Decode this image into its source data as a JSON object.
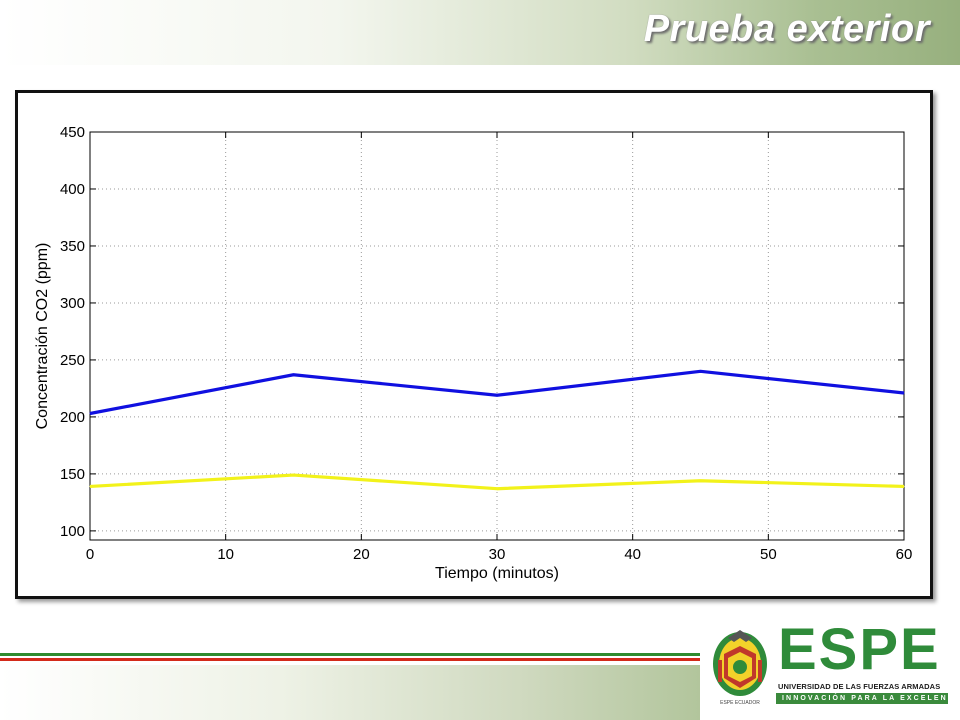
{
  "slide": {
    "title": "Prueba exterior"
  },
  "logo": {
    "name": "ESPE",
    "subtitle": "UNIVERSIDAD DE LAS FUERZAS ARMADAS",
    "tagline": "INNOVACIÓN PARA LA EXCELENCIA",
    "crest_caption": "ESPE ECUADOR",
    "primary_color": "#2f8b3a"
  },
  "chart_data": {
    "type": "line",
    "title": "",
    "xlabel": "Tiempo (minutos)",
    "ylabel": "Concentración CO2 (ppm)",
    "xlim": [
      0,
      60
    ],
    "ylim": [
      92,
      450
    ],
    "xticks": [
      0,
      10,
      20,
      30,
      40,
      50,
      60
    ],
    "yticks": [
      100,
      150,
      200,
      250,
      300,
      350,
      400,
      450
    ],
    "grid": true,
    "grid_style": "dotted",
    "x": [
      0,
      15,
      30,
      45,
      60
    ],
    "series": [
      {
        "name": "",
        "color": "#1010e0",
        "values": [
          203,
          237,
          219,
          240,
          221
        ]
      },
      {
        "name": "",
        "color": "#f2f21a",
        "values": [
          139,
          149,
          137,
          144,
          139
        ]
      }
    ]
  }
}
